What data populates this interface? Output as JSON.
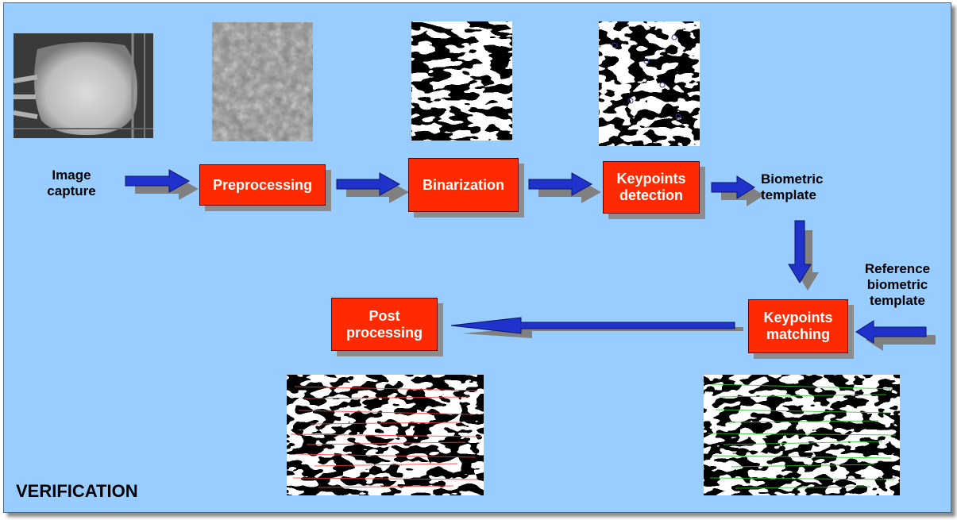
{
  "labels": {
    "image_capture": "Image\ncapture",
    "biometric_template": "Biometric\ntemplate",
    "reference_template": "Reference\nbiometric\ntemplate",
    "section_title": "VERIFICATION"
  },
  "boxes": {
    "preprocessing": "Preprocessing",
    "binarization": "Binarization",
    "keypoints_detection": "Keypoints\ndetection",
    "keypoints_matching": "Keypoints\nmatching",
    "post_processing": "Post\nprocessing"
  },
  "colors": {
    "background": "#99ccff",
    "box_fill": "#ff2a00",
    "arrow": "#1f33cc",
    "match_lines_post": "#ff3a3a",
    "match_lines_keypoints": "#22cc22"
  }
}
